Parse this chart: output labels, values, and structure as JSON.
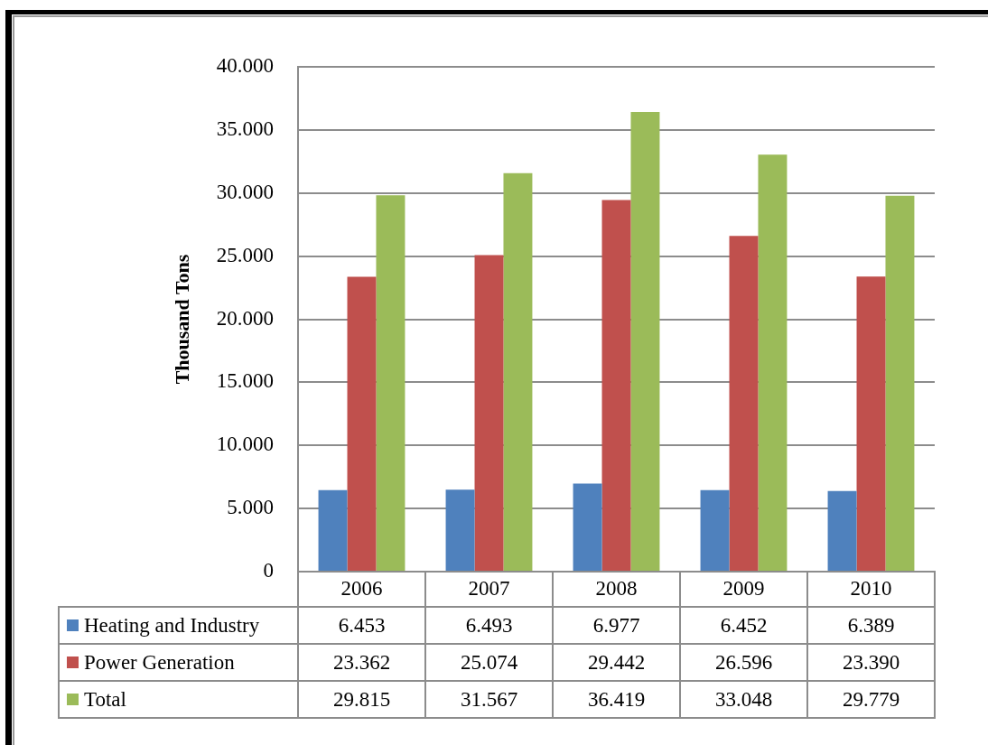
{
  "chart_data": {
    "type": "bar",
    "ylabel": "Thousand Tons",
    "categories": [
      "2006",
      "2007",
      "2008",
      "2009",
      "2010"
    ],
    "series": [
      {
        "name": "Heating and Industry",
        "color": "#4f81bd",
        "values": [
          6453,
          6493,
          6977,
          6452,
          6389
        ],
        "value_labels": [
          "6.453",
          "6.493",
          "6.977",
          "6.452",
          "6.389"
        ]
      },
      {
        "name": "Power Generation",
        "color": "#c0504d",
        "values": [
          23362,
          25074,
          29442,
          26596,
          23390
        ],
        "value_labels": [
          "23.362",
          "25.074",
          "29.442",
          "26.596",
          "23.390"
        ]
      },
      {
        "name": "Total",
        "color": "#9bbb59",
        "values": [
          29815,
          31567,
          36419,
          33048,
          29779
        ],
        "value_labels": [
          "29.815",
          "31.567",
          "36.419",
          "33.048",
          "29.779"
        ]
      }
    ],
    "ylim": [
      0,
      40000
    ],
    "yticks": [
      0,
      {
        "value": 5000,
        "label": "5.000"
      },
      {
        "value": 10000,
        "label": "10.000"
      },
      {
        "value": 15000,
        "label": "15.000"
      },
      {
        "value": 20000,
        "label": "20.000"
      },
      {
        "value": 25000,
        "label": "25.000"
      },
      {
        "value": 30000,
        "label": "30.000"
      },
      {
        "value": 35000,
        "label": "35.000"
      },
      {
        "value": 40000,
        "label": "40.000"
      }
    ],
    "grid": "y",
    "legend": "bottom"
  }
}
